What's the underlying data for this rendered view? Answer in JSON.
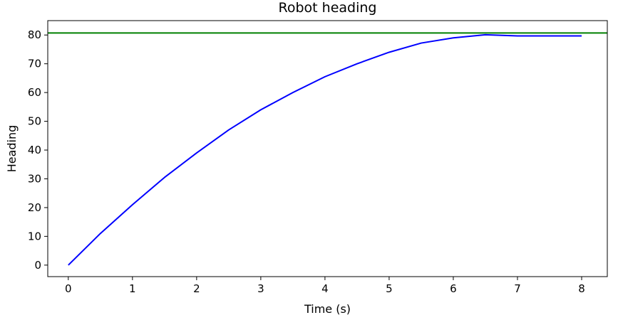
{
  "chart_data": {
    "type": "line",
    "title": "Robot heading",
    "xlabel": "Time (s)",
    "ylabel": "Heading",
    "xlim": [
      -0.32,
      8.4
    ],
    "ylim": [
      -4,
      85
    ],
    "x_ticks": [
      0,
      1,
      2,
      3,
      4,
      5,
      6,
      7,
      8
    ],
    "y_ticks": [
      0,
      10,
      20,
      30,
      40,
      50,
      60,
      70,
      80
    ],
    "grid": false,
    "legend": "none",
    "series": [
      {
        "color": "#0000ff",
        "x": [
          0,
          0.5,
          1,
          1.5,
          2,
          2.5,
          3,
          3.5,
          4,
          4.5,
          5,
          5.5,
          6,
          6.5,
          7,
          7.5,
          8
        ],
        "y": [
          0,
          11,
          21,
          30.5,
          39,
          47,
          54,
          60,
          65.5,
          70,
          74,
          77.2,
          79,
          80.1,
          79.7,
          79.7,
          79.7
        ]
      }
    ],
    "reference_lines": [
      {
        "orientation": "horizontal",
        "y": 80.7,
        "color": "#008000"
      }
    ]
  }
}
